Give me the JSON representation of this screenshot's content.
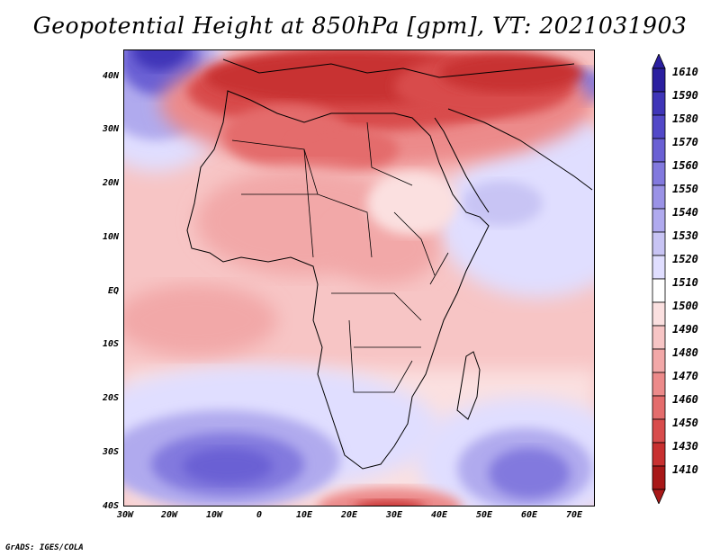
{
  "title": "Geopotential Height at 850hPa [gpm], VT: 2021031903",
  "credit": "GrADS: IGES/COLA",
  "axes": {
    "lat_labels": [
      "40N",
      "30N",
      "20N",
      "10N",
      "EQ",
      "10S",
      "20S",
      "30S",
      "40S"
    ],
    "lon_labels": [
      "30W",
      "20W",
      "10W",
      "0",
      "10E",
      "20E",
      "30E",
      "40E",
      "50E",
      "60E",
      "70E"
    ]
  },
  "colorbar": {
    "levels": [
      "1610",
      "1590",
      "1580",
      "1570",
      "1560",
      "1550",
      "1540",
      "1530",
      "1520",
      "1510",
      "1500",
      "1490",
      "1480",
      "1470",
      "1460",
      "1450",
      "1430",
      "1410"
    ],
    "colors": [
      "#2b1fa0",
      "#3f35b8",
      "#5248c8",
      "#6a60d4",
      "#8279de",
      "#9a92e6",
      "#b0aaee",
      "#c8c4f4",
      "#e0deff",
      "#ffffff",
      "#fbe0e0",
      "#f7c5c5",
      "#f2a8a8",
      "#ec8a8a",
      "#e46c6c",
      "#d84c4c",
      "#c83030",
      "#a81818"
    ]
  },
  "colors": {
    "low_extreme": "#a81818",
    "high_extreme": "#2b1fa0",
    "land_border": "#000000"
  }
}
